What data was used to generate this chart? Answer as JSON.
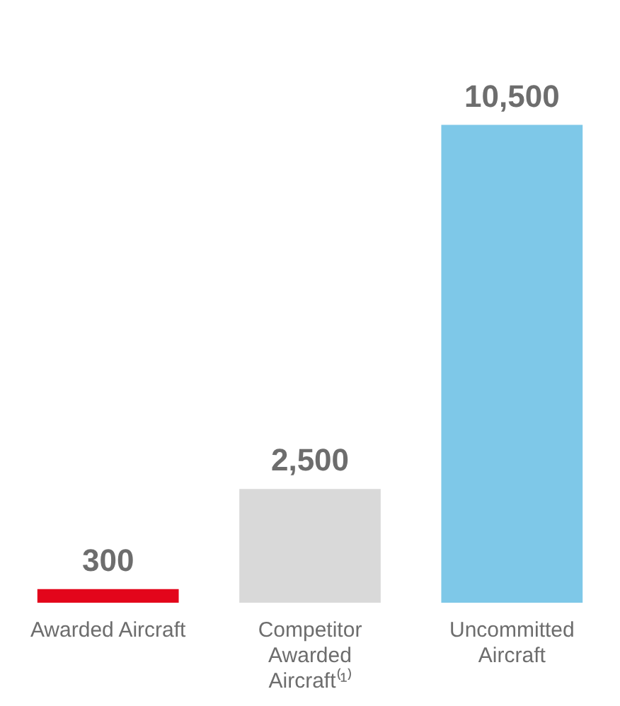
{
  "chart_data": {
    "type": "bar",
    "categories": [
      "Awarded Aircraft",
      "Competitor Awarded Aircraft⁽¹⁾",
      "Uncommitted Aircraft"
    ],
    "values": [
      300,
      2500,
      10500
    ],
    "colors": [
      "#e3051b",
      "#d9d9d9",
      "#7ec8e8"
    ],
    "value_labels": [
      "300",
      "2,500",
      "10,500"
    ]
  }
}
